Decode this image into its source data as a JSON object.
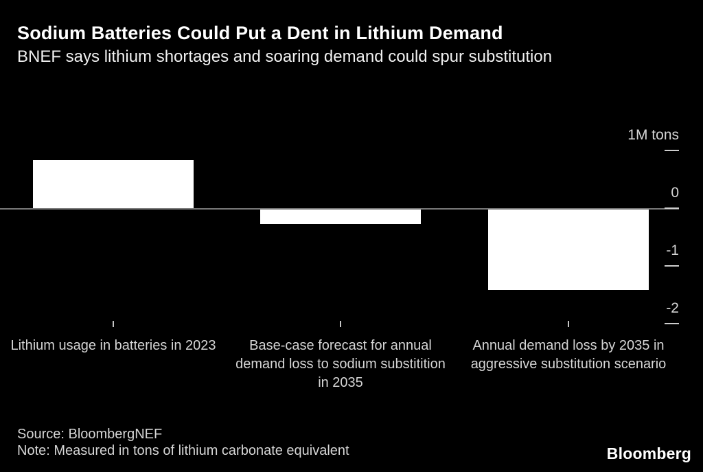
{
  "header": {
    "title": "Sodium Batteries Could Put a Dent in Lithium Demand",
    "subtitle": "BNEF says lithium shortages and soaring demand could spur substitution"
  },
  "chart_data": {
    "type": "bar",
    "title": "Sodium Batteries Could Put a Dent in Lithium Demand",
    "subtitle": "BNEF says lithium shortages and soaring demand could spur substitution",
    "unit": "M tons",
    "categories": [
      "Lithium usage in batteries in 2023",
      "Base-case forecast for annual demand loss to sodium substitition in 2035",
      "Annual demand loss by 2035 in aggressive substitution scenario"
    ],
    "values": [
      0.84,
      -0.26,
      -1.4
    ],
    "yticks": [
      {
        "label": "1M tons",
        "value": 1
      },
      {
        "label": "0",
        "value": 0
      },
      {
        "label": "-1",
        "value": -1
      },
      {
        "label": "-2",
        "value": -2
      }
    ],
    "ylim": [
      -2.1,
      1.4
    ],
    "xlabel": "",
    "ylabel": "1M tons",
    "grid": false,
    "legend": "none",
    "bar_color": "#ffffff",
    "background_color": "#000000",
    "axis_line_color": "#787878",
    "tick_color": "#cdcdcd",
    "text_color": "#d5d5d5"
  },
  "footer": {
    "source": "Source: BloombergNEF",
    "note": "Note: Measured in tons of lithium carbonate equivalent",
    "brand": "Bloomberg"
  }
}
